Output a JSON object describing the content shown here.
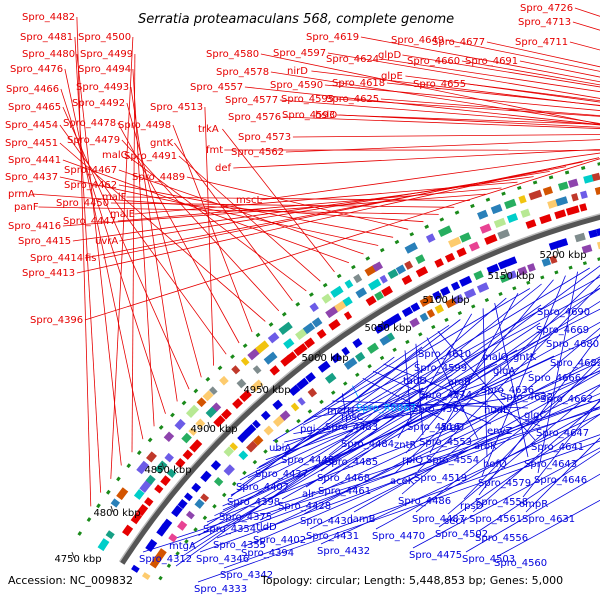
{
  "title": "Serratia proteamaculans 568, complete genome",
  "accession_label": "Accession:",
  "accession": "NC_009832",
  "summary": "Topology: circular; Length: 5,448,853 bp; Genes: 5,000",
  "colors": {
    "forward": "#e60000",
    "reverse": "#0000dd",
    "ring": "#555555",
    "marker": "#1a8a1a",
    "highlight": "#00aaff"
  },
  "ticks": [
    {
      "label": "4750 kbp"
    },
    {
      "label": "4800 kbp"
    },
    {
      "label": "4850 kbp"
    },
    {
      "label": "4900 kbp"
    },
    {
      "label": "4950 kbp"
    },
    {
      "label": "5000 kbp"
    },
    {
      "label": "5050 kbp"
    },
    {
      "label": "5100 kbp"
    },
    {
      "label": "5150 kbp"
    },
    {
      "label": "5200 kbp"
    }
  ],
  "forward_labels": [
    "Spro_4482",
    "Spro_4481",
    "Spro_4500",
    "Spro_4480",
    "Spro_4499",
    "Spro_4476",
    "Spro_4494",
    "Spro_4466",
    "Spro_4493",
    "Spro_4465",
    "Spro_4492",
    "Spro_4513",
    "Spro_4454",
    "Spro_4478",
    "Spro_4498",
    "Spro_4451",
    "Spro_4479",
    "gntK",
    "malG",
    "Spro_4491",
    "trkA",
    "Spro_4441",
    "Spro_4467",
    "Spro_4437",
    "Spro_4462",
    "Spro_4489",
    "prmA",
    "panF",
    "Spro_4450",
    "malF",
    "Spro_4416",
    "Spro_4447",
    "malE",
    "Spro_4415",
    "uvrA",
    "Spro_4414",
    "fis",
    "Spro_4413",
    "Spro_4396",
    "fmt",
    "def",
    "mscL",
    "Spro_4580",
    "Spro_4578",
    "Spro_4557",
    "Spro_4577",
    "Spro_4576",
    "Spro_4573",
    "Spro_4562",
    "Spro_4597",
    "nirD",
    "Spro_4590",
    "Spro_4595",
    "Spro_4593",
    "Spro_4619",
    "Spro_4624",
    "Spro_4618",
    "Spro_4625",
    "hslO",
    "glpD",
    "glpE",
    "Spro_4649",
    "Spro_4660",
    "Spro_4655",
    "Spro_4677",
    "Spro_4691",
    "Spro_4726",
    "Spro_4713",
    "Spro_4711"
  ],
  "reverse_labels": [
    "Spro_4690",
    "Spro_4669",
    "Spro_4680",
    "gntK",
    "malQ",
    "Spro_4682",
    "Spro_4666",
    "Spro_4610",
    "Spro_4599",
    "glgA",
    "aroB",
    "Spro_4636",
    "Spro_4574",
    "Spro_4632",
    "Spro_4662",
    "tauD",
    "Spro_4564",
    "nudE",
    "glgC",
    "rpsC",
    "Spro_R0067",
    "argD",
    "envZ",
    "Spro_4647",
    "metH",
    "Spro_4516",
    "Spro_4553",
    "aroK",
    "Spro_4641",
    "pgi",
    "Spro_4483",
    "zntR",
    "hofQ",
    "Spro_4643",
    "Spro_4484",
    "Spro_4554",
    "ubiA",
    "Spro_4485",
    "rplQ",
    "Spro_4579",
    "Spro_4646",
    "Spro_4446",
    "Spro_4468",
    "aceK",
    "Spro_4519",
    "Spro_4427",
    "Spro_4461",
    "Spro_4558",
    "Spro_4407",
    "alr",
    "Spro_4486",
    "rpsD",
    "ompR",
    "Spro_4398",
    "Spro_4428",
    "Spro_4487",
    "secY",
    "Spro_4561",
    "Spro_4631",
    "Spro_4375",
    "Spro_4430",
    "lamB",
    "Spro_4502",
    "tldD",
    "Spro_4402",
    "Spro_4431",
    "Spro_4470",
    "Spro_4556",
    "Spro_4354",
    "Spro_4394",
    "Spro_4432",
    "Spro_4475",
    "Spro_4503",
    "Spro_4355",
    "Spro_4346",
    "mtgA",
    "Spro_4560",
    "Spro_4312",
    "Spro_4342",
    "Spro_4333"
  ]
}
